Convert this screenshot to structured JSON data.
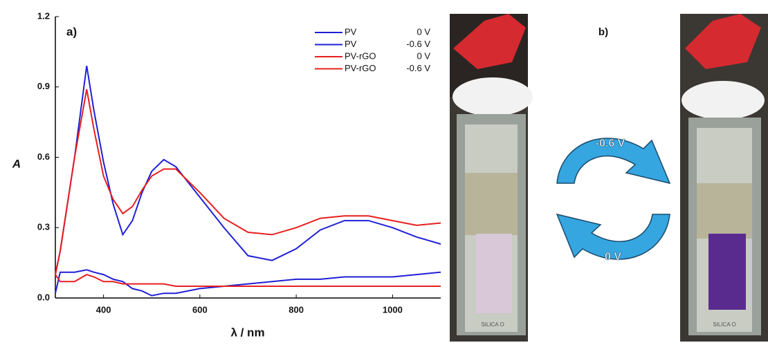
{
  "chart_data": {
    "type": "line",
    "panel_label": "a)",
    "x_label": "λ / nm",
    "y_label": "A",
    "x": [
      300,
      310,
      340,
      365,
      380,
      400,
      420,
      440,
      460,
      480,
      500,
      525,
      550,
      600,
      650,
      700,
      750,
      800,
      850,
      900,
      950,
      1000,
      1050,
      1100
    ],
    "series": [
      {
        "name": "PV",
        "potential": "0 V",
        "color": "#1f1fd6",
        "values": [
          0.1,
          0.2,
          0.6,
          0.99,
          0.8,
          0.58,
          0.4,
          0.27,
          0.33,
          0.45,
          0.54,
          0.59,
          0.56,
          0.43,
          0.3,
          0.18,
          0.16,
          0.21,
          0.29,
          0.33,
          0.33,
          0.3,
          0.26,
          0.23
        ]
      },
      {
        "name": "PV",
        "potential": "-0.6 V",
        "color": "#1f1fd6",
        "values": [
          0.02,
          0.11,
          0.11,
          0.12,
          0.11,
          0.1,
          0.08,
          0.07,
          0.04,
          0.03,
          0.01,
          0.02,
          0.02,
          0.04,
          0.05,
          0.06,
          0.07,
          0.08,
          0.08,
          0.09,
          0.09,
          0.09,
          0.1,
          0.11
        ]
      },
      {
        "name": "PV-rGO",
        "potential": "0 V",
        "color": "#e81e1e",
        "values": [
          0.1,
          0.2,
          0.6,
          0.89,
          0.72,
          0.52,
          0.42,
          0.36,
          0.39,
          0.46,
          0.52,
          0.55,
          0.55,
          0.45,
          0.34,
          0.28,
          0.27,
          0.3,
          0.34,
          0.35,
          0.35,
          0.33,
          0.31,
          0.32
        ]
      },
      {
        "name": "PV-rGO",
        "potential": "-0.6 V",
        "color": "#e81e1e",
        "values": [
          0.1,
          0.07,
          0.07,
          0.1,
          0.09,
          0.07,
          0.07,
          0.06,
          0.06,
          0.06,
          0.06,
          0.06,
          0.05,
          0.05,
          0.05,
          0.05,
          0.05,
          0.05,
          0.05,
          0.05,
          0.05,
          0.05,
          0.05,
          0.05
        ]
      }
    ],
    "xlim": [
      300,
      1100
    ],
    "xticks": [
      400,
      600,
      800,
      1000
    ],
    "ylim": [
      0,
      1.2
    ],
    "yticks": [
      {
        "value": 0,
        "label": "0.0"
      },
      0.3,
      0.6,
      0.9,
      1.2
    ],
    "legend": "upper right"
  },
  "panel_b": {
    "label": "b)",
    "reduction": "-0.6 V",
    "oxidation": "0 V",
    "cell_marking": "SILICA O"
  }
}
